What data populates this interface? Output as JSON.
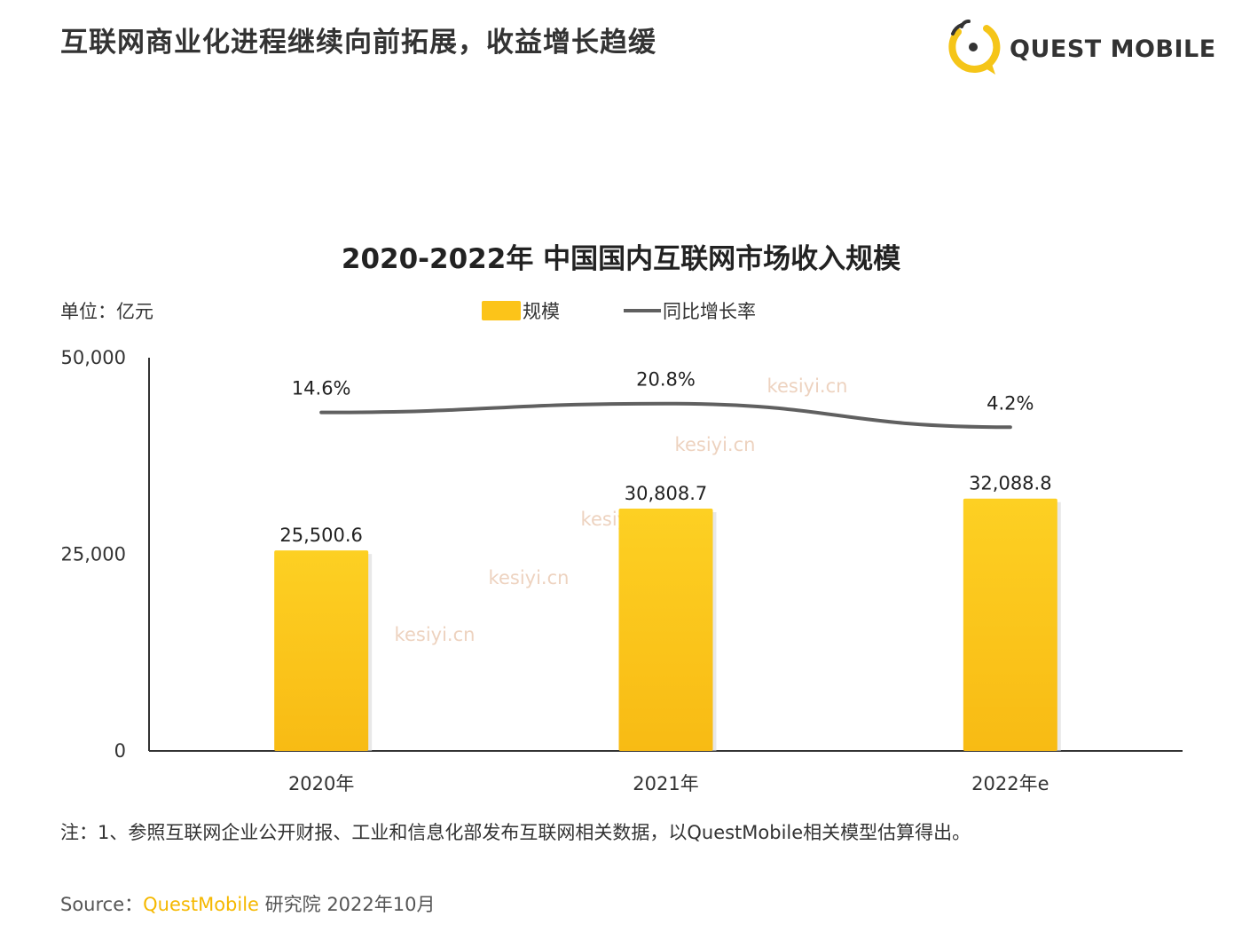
{
  "page": {
    "title": "互联网商业化进程继续向前拓展，收益增长趋缓",
    "logo_text": "QUEST MOBILE",
    "logo_color": "#f5c518",
    "note": "注：1、参照互联网企业公开财报、工业和信息化部发布互联网相关数据，以QuestMobile相关模型估算得出。",
    "source_prefix": "Source：",
    "source_brand": "QuestMobile",
    "source_suffix": " 研究院 2022年10月",
    "watermark": "kesiyi.cn"
  },
  "chart_data": {
    "type": "bar",
    "title": "2020-2022年 中国国内互联网市场收入规模",
    "unit_label": "单位：亿元",
    "categories": [
      "2020年",
      "2021年",
      "2022年e"
    ],
    "series": [
      {
        "name": "规模",
        "type": "bar",
        "color": "#fcc419",
        "values": [
          25500.6,
          30808.7,
          32088.8
        ],
        "labels": [
          "25,500.6",
          "30,808.7",
          "32,088.8"
        ]
      },
      {
        "name": "同比增长率",
        "type": "line",
        "color": "#606060",
        "values": [
          14.6,
          20.8,
          4.2
        ],
        "labels": [
          "14.6%",
          "20.8%",
          "4.2%"
        ]
      }
    ],
    "ylim": [
      0,
      50000
    ],
    "yticks": [
      0,
      25000,
      50000
    ],
    "ytick_labels": [
      "0",
      "25,000",
      "50,000"
    ],
    "grid": false,
    "legend_position": "top-center"
  }
}
